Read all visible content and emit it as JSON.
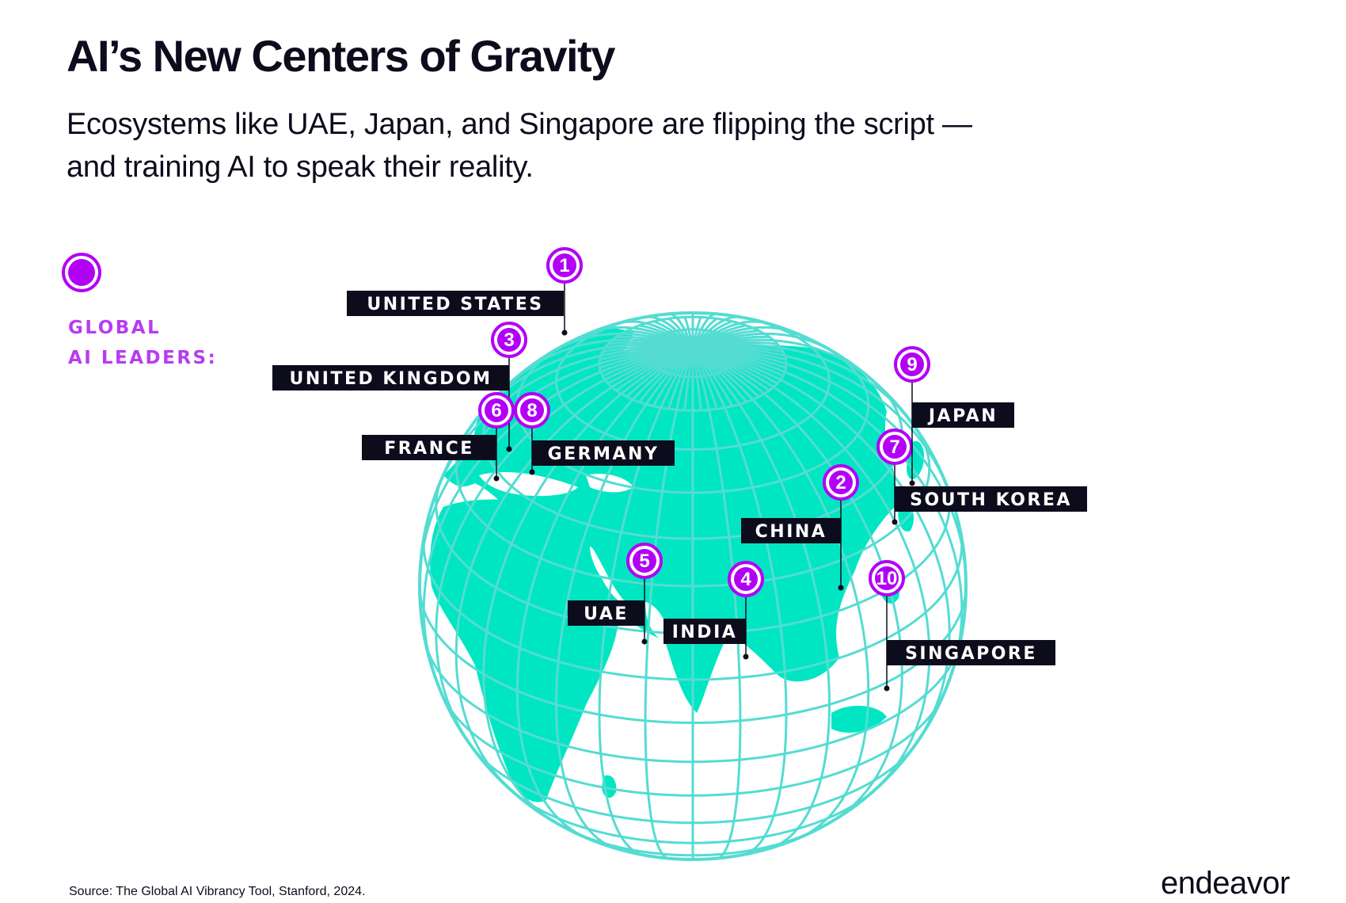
{
  "header": {
    "title": "AI’s New Centers of Gravity",
    "subtitle": "Ecosystems like UAE, Japan, and Singapore are flipping the script — and training AI to speak their reality."
  },
  "legend": {
    "label": "GLOBAL\nAI LEADERS:",
    "color": "#b200f5"
  },
  "map": {
    "land_color": "#00e6c3",
    "grid_color": "#54dcd2",
    "marker_color": "#b200f5",
    "label_bg": "#0d0c1c",
    "leaders": [
      {
        "rank": "1",
        "country": "UNITED STATES"
      },
      {
        "rank": "2",
        "country": "CHINA"
      },
      {
        "rank": "3",
        "country": "UNITED KINGDOM"
      },
      {
        "rank": "4",
        "country": "INDIA"
      },
      {
        "rank": "5",
        "country": "UAE"
      },
      {
        "rank": "6",
        "country": "FRANCE"
      },
      {
        "rank": "7",
        "country": "SOUTH KOREA"
      },
      {
        "rank": "8",
        "country": "GERMANY"
      },
      {
        "rank": "9",
        "country": "JAPAN"
      },
      {
        "rank": "10",
        "country": "SINGAPORE"
      }
    ]
  },
  "footer": {
    "source": "Source: The Global AI Vibrancy Tool, Stanford, 2024.",
    "logo": "endeavor"
  }
}
